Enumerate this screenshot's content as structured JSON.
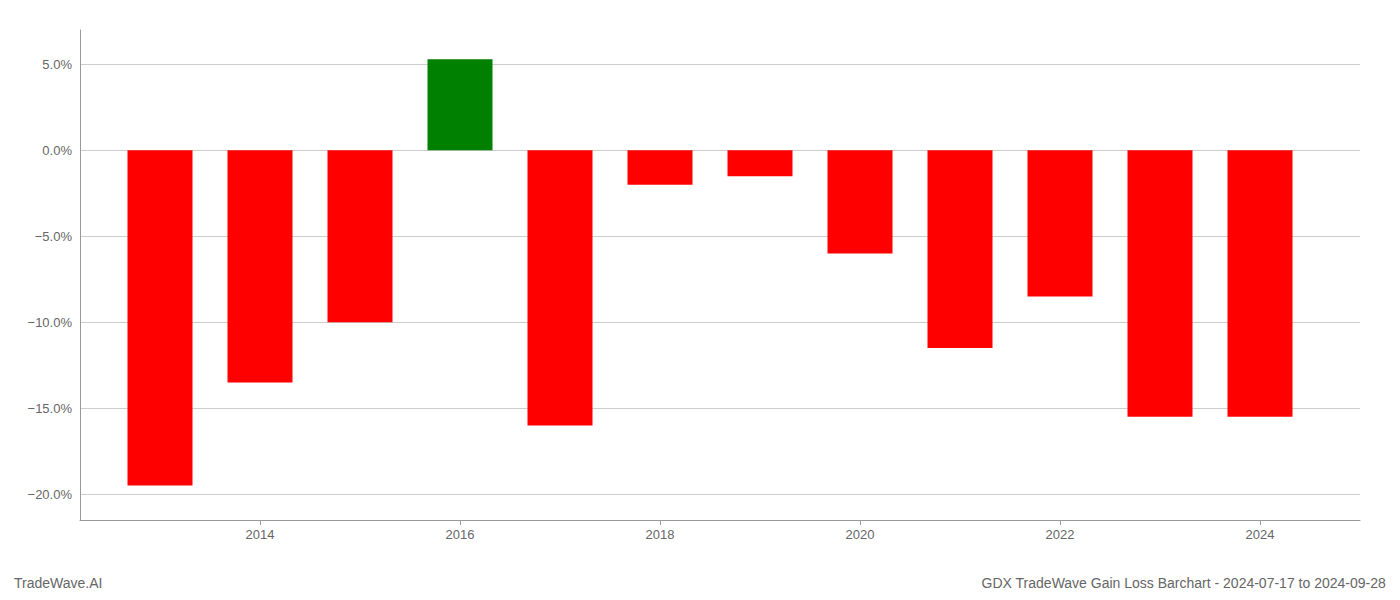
{
  "chart_data": {
    "type": "bar",
    "x": [
      2013,
      2014,
      2015,
      2016,
      2017,
      2018,
      2019,
      2020,
      2021,
      2022,
      2023,
      2024
    ],
    "values": [
      -19.5,
      -13.5,
      -10.0,
      5.3,
      -16.0,
      -2.0,
      -1.5,
      -6.0,
      -11.5,
      -8.5,
      -15.5,
      -15.5
    ],
    "colors": [
      "#ff0000",
      "#ff0000",
      "#ff0000",
      "#008000",
      "#ff0000",
      "#ff0000",
      "#ff0000",
      "#ff0000",
      "#ff0000",
      "#ff0000",
      "#ff0000",
      "#ff0000"
    ],
    "xlim": [
      2012.2,
      2025.0
    ],
    "xticks": [
      2014,
      2016,
      2018,
      2020,
      2022,
      2024
    ],
    "ylim": [
      -21.5,
      7.0
    ],
    "yticks": [
      {
        "value": 5.0,
        "label": "5.0%"
      },
      {
        "value": 0.0,
        "label": "0.0%"
      },
      {
        "value": -5.0,
        "label": "−5.0%"
      },
      {
        "value": -10.0,
        "label": "−10.0%"
      },
      {
        "value": -15.0,
        "label": "−15.0%"
      },
      {
        "value": -20.0,
        "label": "−20.0%"
      }
    ],
    "grid": true,
    "annotations": [
      "TradeWave.AI",
      "GDX TradeWave Gain Loss Barchart - 2024-07-17 to 2024-09-28"
    ]
  }
}
